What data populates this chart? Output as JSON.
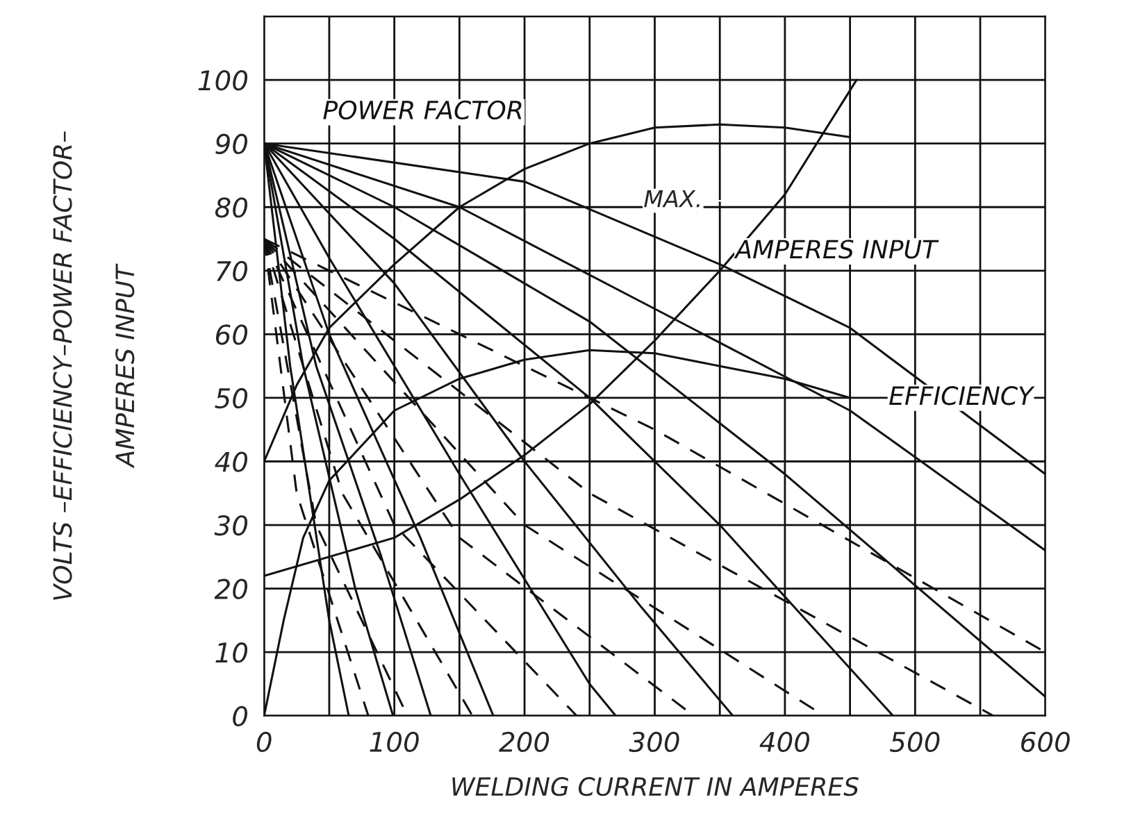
{
  "chart_data": {
    "type": "line",
    "xlabel": "WELDING CURRENT IN AMPERES",
    "ylabel": "VOLTS –EFFICIENCY–POWER FACTOR–\nAMPERES INPUT",
    "xlim": [
      0,
      600
    ],
    "ylim": [
      0,
      110
    ],
    "xticks": [
      0,
      {
        "value": 50,
        "label": null
      },
      100,
      {
        "value": 150,
        "label": null
      },
      200,
      {
        "value": 250,
        "label": null
      },
      300,
      {
        "value": 350,
        "label": null
      },
      400,
      {
        "value": 450,
        "label": null
      },
      500,
      {
        "value": 550,
        "label": null
      },
      600
    ],
    "yticks": [
      0,
      10,
      20,
      30,
      40,
      50,
      60,
      70,
      80,
      90,
      100,
      {
        "value": 110,
        "label": null
      }
    ],
    "grid": true,
    "legend": false,
    "marker": "none",
    "annotations": [
      {
        "text": "MAX.",
        "x": 396,
        "y": 81
      }
    ],
    "series": [
      {
        "name": "POWER FACTOR",
        "color": "#111111",
        "x": [
          0,
          25,
          50,
          100,
          150,
          200,
          250,
          300,
          350,
          400,
          450
        ],
        "values": [
          40,
          52,
          61,
          71,
          80,
          86,
          90,
          92.5,
          93,
          92.5,
          91
        ]
      },
      {
        "name": "AMPERES INPUT",
        "color": "#111111",
        "x": [
          0,
          100,
          150,
          200,
          250,
          300,
          350,
          400,
          455
        ],
        "values": [
          22,
          28,
          34,
          41,
          49,
          59,
          70,
          82,
          100
        ]
      },
      {
        "name": "EFFICIENCY",
        "color": "#111111",
        "x": [
          0,
          15,
          30,
          50,
          100,
          150,
          200,
          250,
          300,
          350,
          400,
          450
        ],
        "values": [
          0,
          15,
          28,
          37,
          48,
          53,
          56,
          57.5,
          57,
          55,
          53,
          50
        ]
      },
      {
        "color": "#111111",
        "x": [
          0,
          200,
          350,
          450,
          600
        ],
        "values": [
          90,
          84,
          71,
          61,
          38
        ]
      },
      {
        "color": "#111111",
        "x": [
          0,
          150,
          300,
          450,
          600
        ],
        "values": [
          90,
          80,
          64,
          48,
          26
        ]
      },
      {
        "color": "#111111",
        "x": [
          0,
          100,
          250,
          400,
          600
        ],
        "values": [
          90,
          80,
          62,
          38,
          3
        ]
      },
      {
        "color": "#111111",
        "x": [
          0,
          100,
          250,
          350,
          483
        ],
        "values": [
          90,
          75,
          50,
          30,
          0
        ]
      },
      {
        "color": "#111111",
        "x": [
          0,
          100,
          200,
          290,
          360
        ],
        "values": [
          90,
          68,
          40,
          17,
          0
        ]
      },
      {
        "color": "#111111",
        "x": [
          0,
          50,
          150,
          250,
          270
        ],
        "values": [
          90,
          72,
          38,
          5,
          0
        ]
      },
      {
        "color": "#111111",
        "x": [
          0,
          50,
          120,
          176
        ],
        "values": [
          90,
          60,
          28,
          0
        ]
      },
      {
        "color": "#111111",
        "x": [
          0,
          40,
          90,
          128
        ],
        "values": [
          90,
          55,
          25,
          0
        ]
      },
      {
        "color": "#111111",
        "x": [
          0,
          30,
          70,
          99
        ],
        "values": [
          90,
          55,
          20,
          0
        ]
      },
      {
        "color": "#111111",
        "x": [
          0,
          20,
          50,
          65
        ],
        "values": [
          90,
          55,
          15,
          0
        ]
      },
      {
        "color": "#111111",
        "line_style": "dashed",
        "x": [
          0,
          300,
          600
        ],
        "values": [
          75,
          45,
          10
        ]
      },
      {
        "color": "#111111",
        "line_style": "dashed",
        "x": [
          0,
          250,
          560
        ],
        "values": [
          75,
          35,
          0
        ]
      },
      {
        "color": "#111111",
        "line_style": "dashed",
        "x": [
          0,
          200,
          430
        ],
        "values": [
          75,
          30,
          0
        ]
      },
      {
        "color": "#111111",
        "line_style": "dashed",
        "x": [
          0,
          150,
          330
        ],
        "values": [
          75,
          28,
          0
        ]
      },
      {
        "color": "#111111",
        "line_style": "dashed",
        "x": [
          0,
          100,
          240
        ],
        "values": [
          75,
          30,
          0
        ]
      },
      {
        "color": "#111111",
        "line_style": "dashed",
        "x": [
          0,
          60,
          160
        ],
        "values": [
          75,
          35,
          0
        ]
      },
      {
        "color": "#111111",
        "line_style": "dashed",
        "x": [
          0,
          40,
          110
        ],
        "values": [
          75,
          30,
          0
        ]
      },
      {
        "color": "#111111",
        "line_style": "dashed",
        "x": [
          0,
          25,
          80
        ],
        "values": [
          75,
          35,
          0
        ]
      }
    ]
  }
}
